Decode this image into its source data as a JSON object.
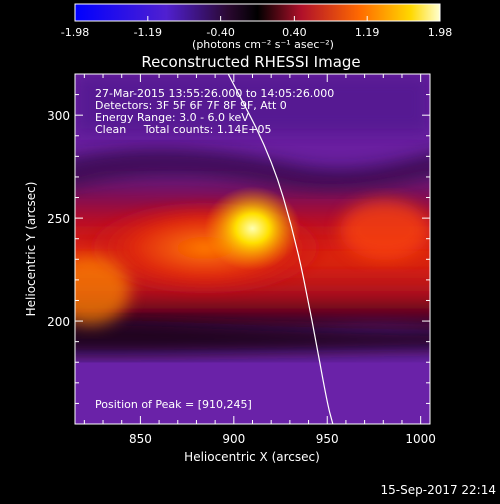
{
  "chart_data": {
    "type": "heatmap",
    "title": "Reconstructed RHESSI Image",
    "xlabel": "Heliocentric X (arcsec)",
    "ylabel": "Heliocentric Y (arcsec)",
    "xlim": [
      815,
      1005
    ],
    "ylim": [
      150,
      320
    ],
    "x_ticks": [
      850,
      900,
      950,
      1000
    ],
    "y_ticks": [
      200,
      250,
      300
    ],
    "x_tick_labels": [
      "850",
      "900",
      "950",
      "1000"
    ],
    "y_tick_labels": [
      "200",
      "250",
      "300"
    ],
    "colorbar": {
      "min": -1.98,
      "max": 1.98,
      "ticks": [
        -1.98,
        -1.19,
        -0.4,
        0.4,
        1.19,
        1.98
      ],
      "tick_labels": [
        "-1.98",
        "-1.19",
        "-0.40",
        "0.40",
        "1.19",
        "1.98"
      ],
      "label": "(photons cm⁻² s⁻¹ asec⁻²)"
    },
    "annotations": [
      "27-Mar-2015 13:55:26.000 to 14:05:26.000",
      "Detectors: 3F 5F 6F 7F 8F 9F, Att 0",
      "Energy Range: 3.0 - 6.0 keV",
      "Clean     Total counts: 1.14E+05"
    ],
    "peak_label": "Position of Peak = [910,245]",
    "peak": [
      910,
      245
    ],
    "limb_arc_points": [
      [
        897,
        320
      ],
      [
        920,
        280
      ],
      [
        933,
        240
      ],
      [
        942,
        200
      ],
      [
        950,
        160
      ],
      [
        953,
        150
      ]
    ],
    "footer": "15-Sep-2017 22:14"
  }
}
